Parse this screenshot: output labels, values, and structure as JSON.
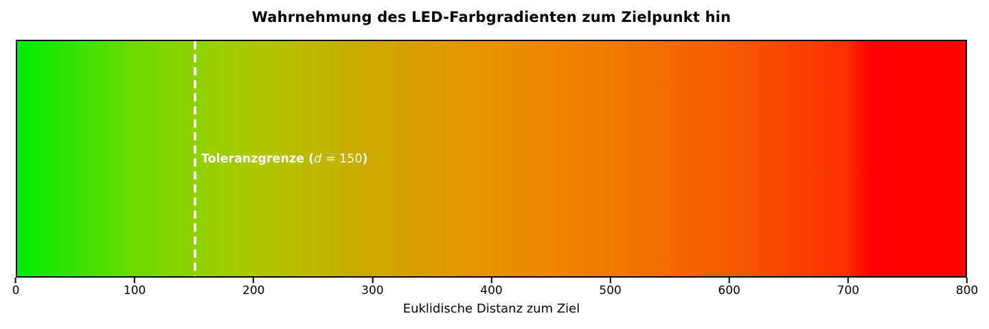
{
  "chart_data": {
    "type": "heatmap",
    "title": "Wahrnehmung des LED-Farbgradienten zum Zielpunkt hin",
    "xlabel": "Euklidische Distanz zum Ziel",
    "xlim": [
      0,
      800
    ],
    "xticks": [
      0,
      100,
      200,
      300,
      400,
      500,
      600,
      700,
      800
    ],
    "grid": false,
    "description": "Horizontal color gradient strip from green (distance 0) through yellow and orange to pure red (saturating at distance ~720), with a white dashed vertical tolerance line at d = 150.",
    "gradient_stops": [
      {
        "distance": 0,
        "color": "#00EC00"
      },
      {
        "distance": 100,
        "color": "#6FDA00"
      },
      {
        "distance": 200,
        "color": "#ADC900"
      },
      {
        "distance": 300,
        "color": "#CDA700"
      },
      {
        "distance": 400,
        "color": "#E99300"
      },
      {
        "distance": 500,
        "color": "#F17A00"
      },
      {
        "distance": 600,
        "color": "#F65B00"
      },
      {
        "distance": 700,
        "color": "#FB2E00"
      },
      {
        "distance": 720,
        "color": "#FF0000"
      },
      {
        "distance": 800,
        "color": "#FF0000"
      }
    ],
    "tolerance_line": {
      "value": 150,
      "color": "#FFFFFF",
      "style": "dashed",
      "label_full_text": "Toleranzgrenze (d = 150)",
      "label_prefix": "Toleranzgrenze (",
      "label_variable": "d",
      "label_equation": " = 150",
      "label_suffix": ")"
    },
    "colors": {
      "start": "#00EC00",
      "end": "#FF0000",
      "line": "#FFFFFF",
      "text": "#000000",
      "background": "#FFFFFF"
    }
  }
}
